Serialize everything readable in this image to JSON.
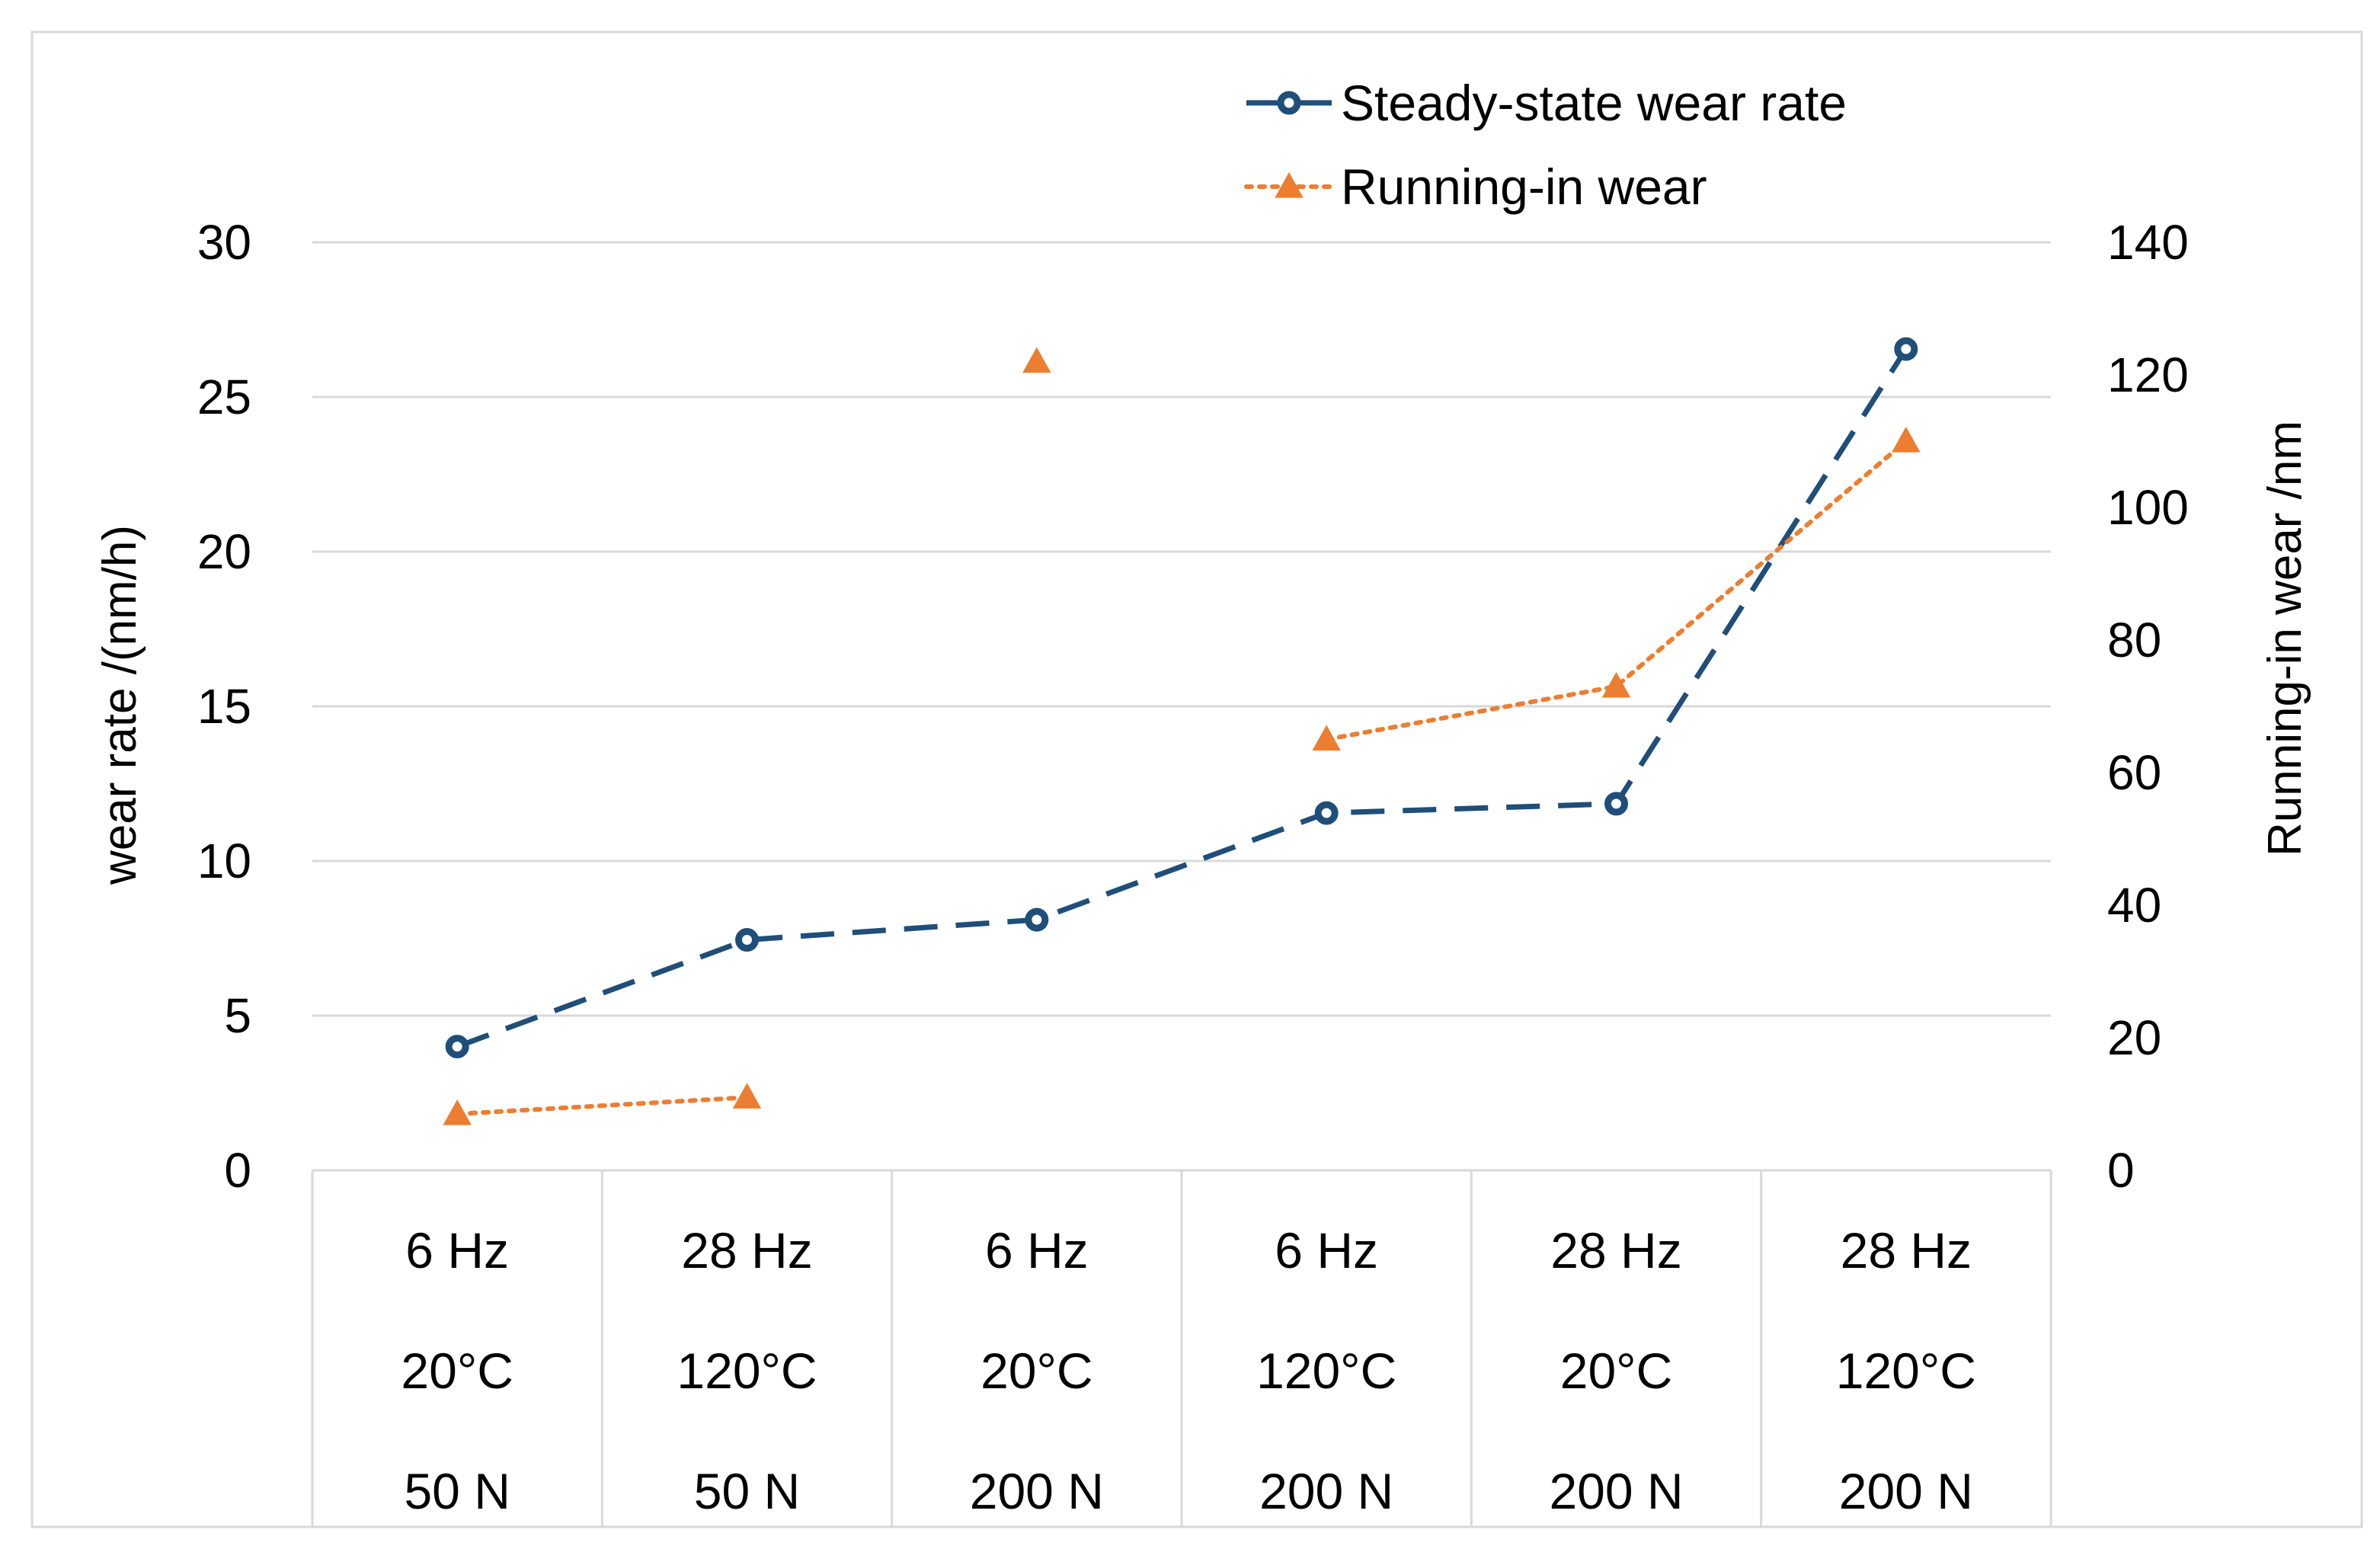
{
  "chart_data": {
    "type": "line",
    "title": "",
    "categories": [
      [
        "6 Hz",
        "20°C",
        "50 N"
      ],
      [
        "28 Hz",
        "120°C",
        "50 N"
      ],
      [
        "6 Hz",
        "20°C",
        "200 N"
      ],
      [
        "6 Hz",
        "120°C",
        "200 N"
      ],
      [
        "28 Hz",
        "20°C",
        "200 N"
      ],
      [
        "28 Hz",
        "120°C",
        "200 N"
      ]
    ],
    "series": [
      {
        "name": "Steady-state wear rate",
        "axis": "left",
        "color": "#1f4e79",
        "line_style": "dashed",
        "marker": "circle",
        "values": [
          4.0,
          7.45,
          8.1,
          11.55,
          11.85,
          26.55
        ]
      },
      {
        "name": "Running-in wear",
        "axis": "right",
        "color": "#ed7d31",
        "line_style": "dotted",
        "marker": "triangle",
        "values": [
          8.5,
          11.0,
          null,
          65.0,
          73.0,
          110.0
        ]
      },
      {
        "name": "Running-in wear",
        "axis": "right",
        "role": "unconnected point",
        "color": "#ed7d31",
        "line_style": "none",
        "marker": "triangle",
        "values": [
          null,
          null,
          122.0,
          null,
          null,
          null
        ]
      }
    ],
    "ylabel": "wear rate /(nm/h)",
    "ylim": [
      0,
      30
    ],
    "yticks": [
      "0",
      "5",
      "10",
      "15",
      "20",
      "25",
      "30"
    ],
    "y2label": "Running-in wear /nm",
    "y2lim": [
      0,
      140
    ],
    "y2ticks": [
      "0",
      "20",
      "40",
      "60",
      "80",
      "100",
      "120",
      "140"
    ],
    "grid": true,
    "legend_position": "top-right"
  }
}
